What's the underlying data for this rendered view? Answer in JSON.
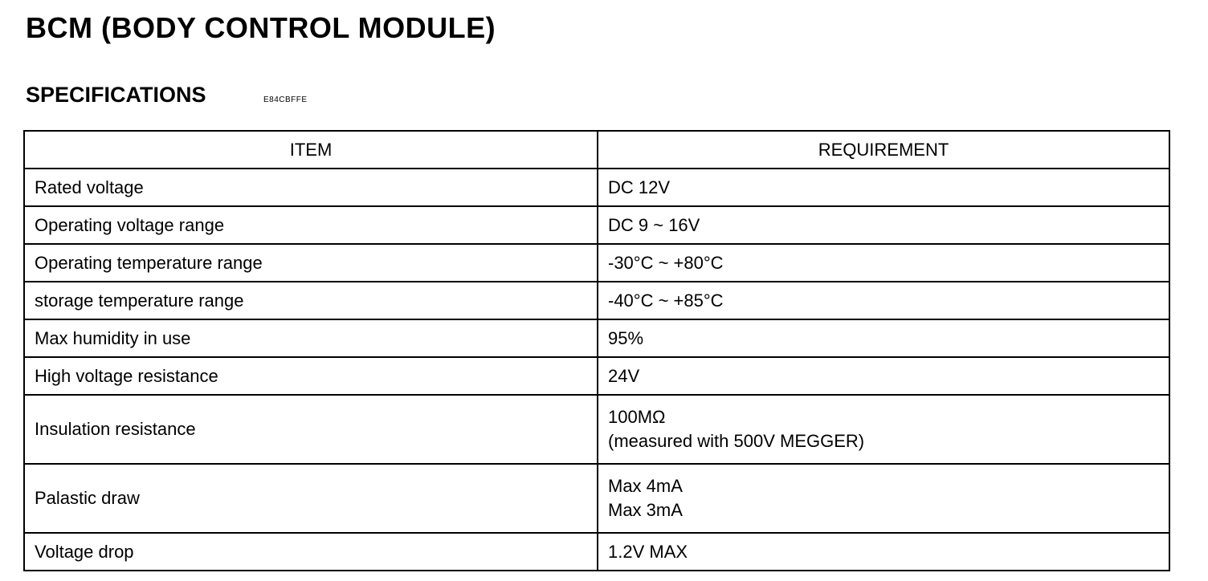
{
  "document": {
    "title": "BCM (BODY CONTROL MODULE)",
    "section": "SPECIFICATIONS",
    "section_code": "E84CBFFE"
  },
  "table": {
    "headers": [
      "ITEM",
      "REQUIREMENT"
    ],
    "rows": [
      {
        "item": "Rated voltage",
        "requirement": [
          "DC 12V"
        ]
      },
      {
        "item": "Operating voltage range",
        "requirement": [
          "DC 9 ~ 16V"
        ]
      },
      {
        "item": "Operating temperature range",
        "requirement": [
          "-30°C ~ +80°C"
        ]
      },
      {
        "item": "storage temperature range",
        "requirement": [
          "-40°C ~ +85°C"
        ]
      },
      {
        "item": "Max humidity in use",
        "requirement": [
          "95%"
        ]
      },
      {
        "item": "High voltage resistance",
        "requirement": [
          "24V"
        ]
      },
      {
        "item": "Insulation resistance",
        "requirement": [
          "100MΩ",
          "(measured with 500V MEGGER)"
        ]
      },
      {
        "item": "Palastic draw",
        "requirement": [
          "Max 4mA",
          "Max 3mA"
        ]
      },
      {
        "item": "Voltage drop",
        "requirement": [
          "1.2V MAX"
        ]
      }
    ]
  }
}
